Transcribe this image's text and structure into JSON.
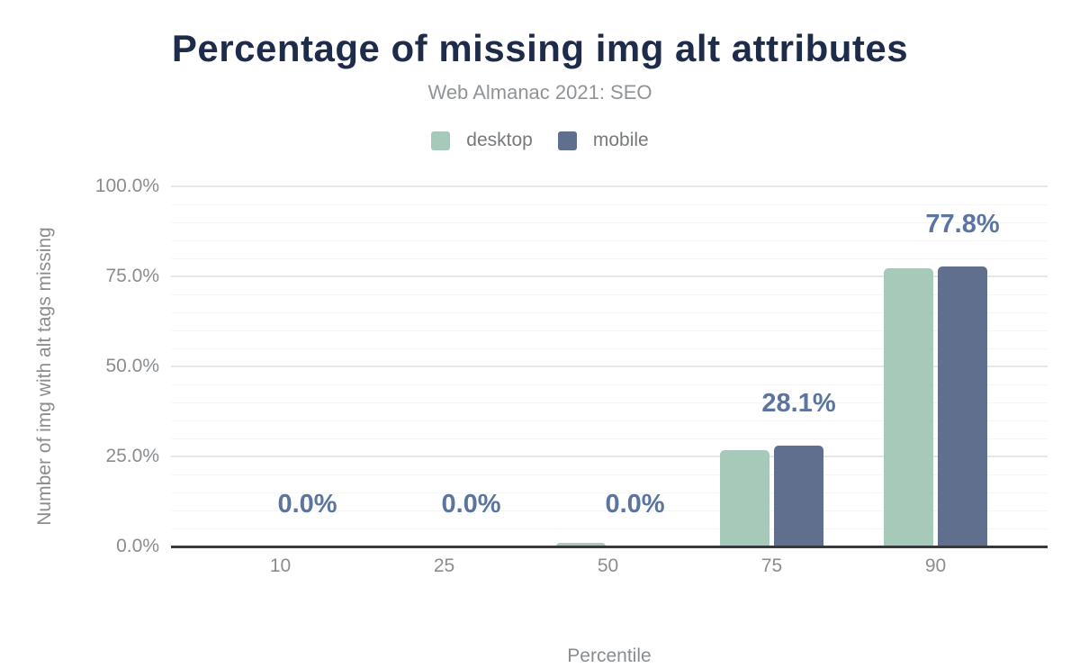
{
  "chart_data": {
    "type": "bar",
    "title": "Percentage of missing img alt attributes",
    "subtitle": "Web Almanac 2021: SEO",
    "xlabel": "Percentile",
    "ylabel": "Number of img with alt tags missing",
    "categories": [
      "10",
      "25",
      "50",
      "75",
      "90"
    ],
    "series": [
      {
        "name": "desktop",
        "color": "#a7c9ba",
        "values": [
          0,
          0,
          1.1,
          26.8,
          77.2
        ]
      },
      {
        "name": "mobile",
        "color": "#606f8d",
        "values": [
          0,
          0,
          0,
          28.1,
          77.8
        ]
      }
    ],
    "data_labels": [
      "0.0%",
      "0.0%",
      "0.0%",
      "28.1%",
      "77.8%"
    ],
    "data_labels_series": "mobile",
    "yticks": [
      {
        "value": 0,
        "label": "0.0%"
      },
      {
        "value": 25,
        "label": "25.0%"
      },
      {
        "value": 50,
        "label": "50.0%"
      },
      {
        "value": 75,
        "label": "75.0%"
      },
      {
        "value": 100,
        "label": "100.0%"
      }
    ],
    "ylim": [
      0,
      100
    ],
    "minor_grid_step_percent": 5,
    "grid": true,
    "legend_position": "top-center"
  },
  "colors": {
    "title_text": "#1e2b4a",
    "subtitle_text": "#919496",
    "legend_text": "#76797c",
    "axis_text": "#8a8d90",
    "data_label_text": "#5b74a0",
    "grid_major": "#e7e7e7",
    "grid_minor": "#f5f5f5",
    "axis_line": "#363a3e",
    "background": "#ffffff"
  }
}
